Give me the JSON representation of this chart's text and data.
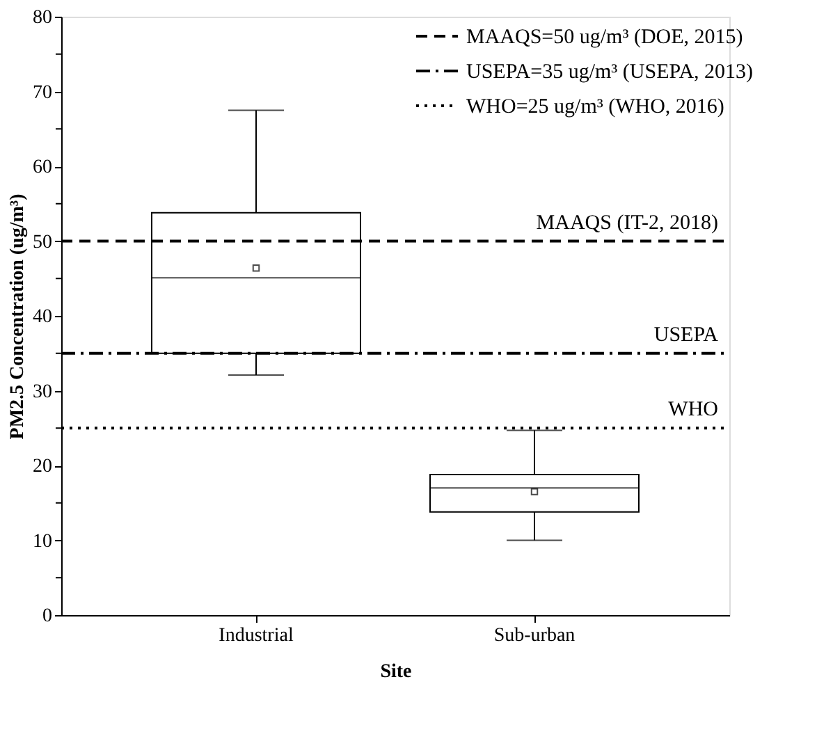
{
  "chart_data": {
    "type": "box",
    "xlabel": "Site",
    "ylabel": "PM2.5 Concentration (ug/m³)",
    "categories": [
      "Industrial",
      "Sub-urban"
    ],
    "boxes": [
      {
        "low": 32.1,
        "q1": 35,
        "median": 45.1,
        "q3": 53.8,
        "high": 67.5,
        "mean": 46.4
      },
      {
        "low": 10,
        "q1": 13.8,
        "median": 17,
        "q3": 18.8,
        "high": 24.7,
        "mean": 16.5
      }
    ],
    "ylim": [
      0,
      80
    ],
    "yticks": [
      0,
      {
        "value": 5,
        "label": null
      },
      10,
      {
        "value": 15,
        "label": null
      },
      20,
      {
        "value": 25,
        "label": null
      },
      30,
      {
        "value": 35,
        "label": null
      },
      40,
      {
        "value": 45,
        "label": null
      },
      50,
      {
        "value": 55,
        "label": null
      },
      60,
      {
        "value": 65,
        "label": null
      },
      70,
      {
        "value": 75,
        "label": null
      },
      80
    ],
    "ref_lines": [
      {
        "axis": "y",
        "value": 50,
        "label": "MAAQS (IT-2, 2018)",
        "line_style": "dashed",
        "color": "#000000"
      },
      {
        "axis": "y",
        "value": 35,
        "label": "USEPA",
        "line_style": "dashdot",
        "color": "#000000"
      },
      {
        "axis": "y",
        "value": 25,
        "label": "WHO",
        "line_style": "dotted",
        "color": "#000000"
      }
    ],
    "annotations": [
      "MAAQS=50 ug/m³ (DOE, 2015)",
      "USEPA=35 ug/m³ (USEPA, 2013)",
      "WHO=25 ug/m³ (WHO, 2016)"
    ],
    "grid": false,
    "legend": "top right"
  }
}
